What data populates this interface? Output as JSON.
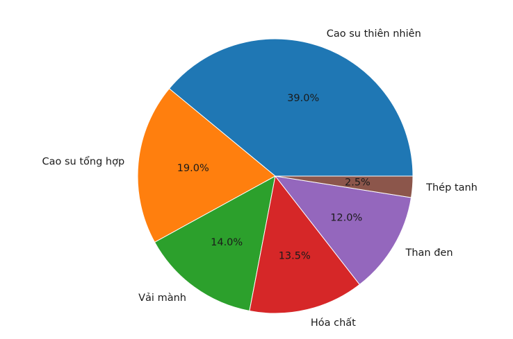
{
  "chart_data": {
    "type": "pie",
    "title": "",
    "start_angle_deg": 0,
    "direction": "counterclockwise",
    "slices": [
      {
        "label": "Cao su thiên nhiên",
        "value": 39.0,
        "pct_text": "39.0%",
        "color": "#1f77b4"
      },
      {
        "label": "Cao su tổng hợp",
        "value": 19.0,
        "pct_text": "19.0%",
        "color": "#ff7f0e"
      },
      {
        "label": "Vải mành",
        "value": 14.0,
        "pct_text": "14.0%",
        "color": "#2ca02c"
      },
      {
        "label": "Hóa chất",
        "value": 13.5,
        "pct_text": "13.5%",
        "color": "#d62728"
      },
      {
        "label": "Than đen",
        "value": 12.0,
        "pct_text": "12.0%",
        "color": "#9467bd"
      },
      {
        "label": "Thép tanh",
        "value": 2.5,
        "pct_text": "2.5%",
        "color": "#8c564b"
      }
    ]
  }
}
